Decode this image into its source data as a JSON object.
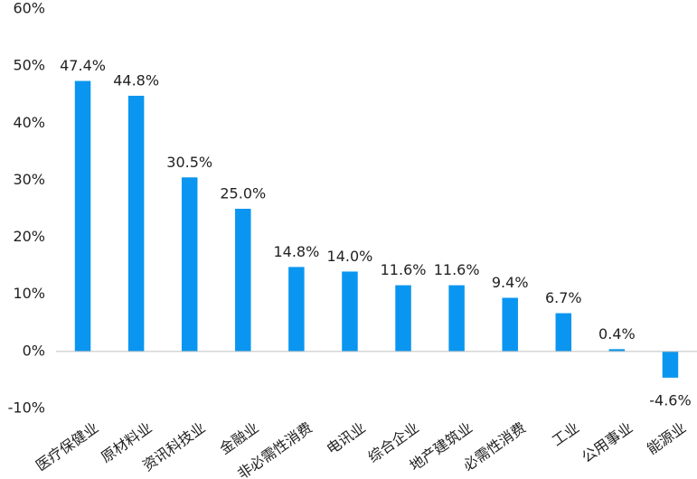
{
  "chart_data": {
    "type": "bar",
    "title": "",
    "xlabel": "",
    "ylabel": "",
    "categories": [
      "医疗保健业",
      "原材料业",
      "资讯科技业",
      "金融业",
      "非必需性消费",
      "电讯业",
      "综合企业",
      "地产建筑业",
      "必需性消费",
      "工业",
      "公用事业",
      "能源业"
    ],
    "values": [
      47.4,
      44.8,
      30.5,
      25.0,
      14.8,
      14.0,
      11.6,
      11.6,
      9.4,
      6.7,
      0.4,
      -4.6
    ],
    "data_labels": [
      "47.4%",
      "44.8%",
      "30.5%",
      "25.0%",
      "14.8%",
      "14.0%",
      "11.6%",
      "11.6%",
      "9.4%",
      "6.7%",
      "0.4%",
      "-4.6%"
    ],
    "y_ticks": [
      60,
      50,
      40,
      30,
      20,
      10,
      0,
      -10
    ],
    "y_tick_labels": [
      "60%",
      "50%",
      "40%",
      "30%",
      "20%",
      "10%",
      "0%",
      "-10%"
    ],
    "ylim": [
      -10,
      60
    ],
    "grid": false,
    "legend": "none",
    "bar_color": "#0A96F0"
  }
}
